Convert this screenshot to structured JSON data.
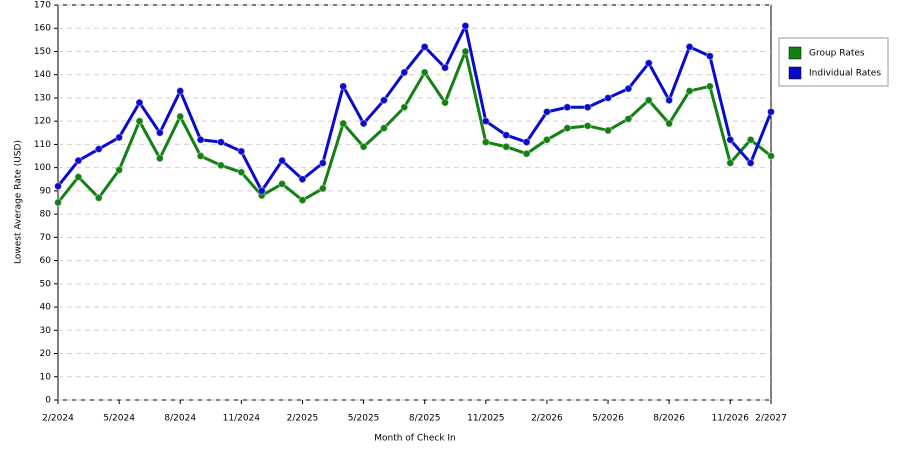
{
  "chart_data": {
    "type": "line",
    "x_label": "Month of Check In",
    "y_label": "Lowest Average Rate (USD)",
    "categories": [
      "2/2024",
      null,
      null,
      "5/2024",
      null,
      null,
      "8/2024",
      null,
      null,
      "11/2024",
      null,
      null,
      "2/2025",
      null,
      null,
      "5/2025",
      null,
      null,
      "8/2025",
      null,
      null,
      "11/2025",
      null,
      null,
      "2/2026",
      null,
      null,
      "5/2026",
      null,
      null,
      "8/2026",
      null,
      null,
      "11/2026",
      null,
      null
    ],
    "x_axis_end_label": "2/2027",
    "series": [
      {
        "name": "Group Rates",
        "color": "#138013",
        "values": [
          85,
          96,
          87,
          99,
          120,
          104,
          122,
          105,
          101,
          98,
          88,
          93,
          86,
          91,
          119,
          109,
          117,
          126,
          141,
          128,
          150,
          111,
          109,
          106,
          112,
          117,
          118,
          116,
          121,
          129,
          119,
          133,
          135,
          102,
          112,
          105
        ]
      },
      {
        "name": "Individual Rates",
        "color": "#0a0acc",
        "values": [
          92,
          103,
          108,
          113,
          128,
          115,
          133,
          112,
          111,
          107,
          90,
          103,
          95,
          102,
          135,
          119,
          129,
          141,
          152,
          143,
          161,
          120,
          114,
          111,
          124,
          126,
          126,
          130,
          134,
          145,
          129,
          152,
          148,
          112,
          102,
          124
        ]
      }
    ],
    "ylim": [
      0,
      170
    ],
    "yticks": [
      0,
      10,
      20,
      30,
      40,
      50,
      60,
      70,
      80,
      90,
      100,
      110,
      120,
      130,
      140,
      150,
      160,
      170
    ],
    "grid": true
  }
}
